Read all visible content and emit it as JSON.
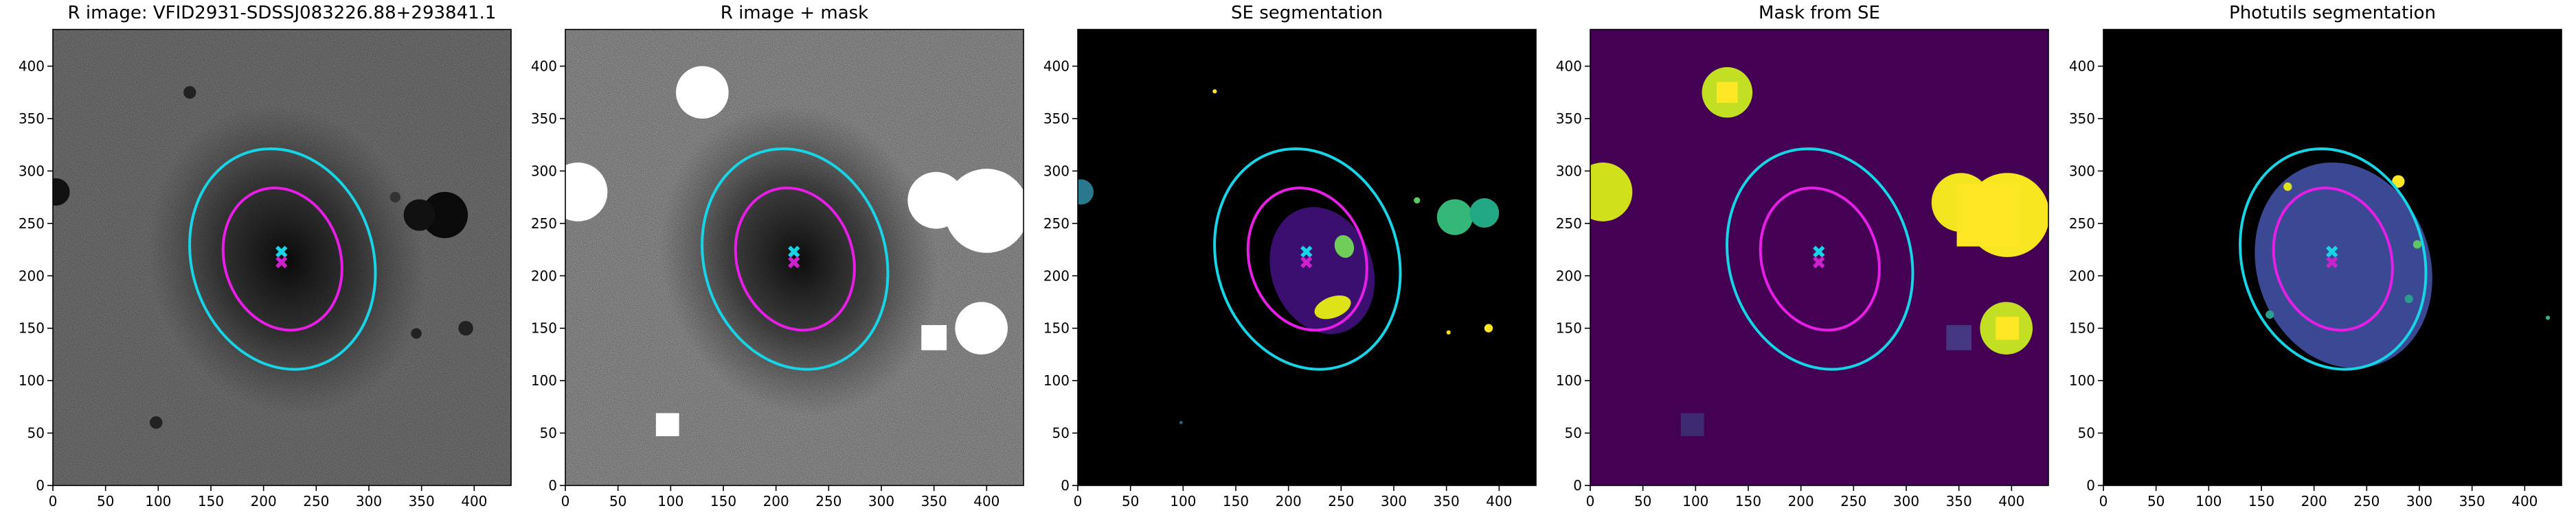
{
  "chart_data": [
    {
      "type": "image",
      "title": "R image: VFID2931-SDSSJ083226.88+293841.1",
      "background": "#7a7a7a",
      "xlim": [
        0,
        435
      ],
      "ylim": [
        0,
        435
      ],
      "xticks": [
        0,
        50,
        100,
        150,
        200,
        250,
        300,
        350,
        400
      ],
      "yticks": [
        0,
        50,
        100,
        150,
        200,
        250,
        300,
        350,
        400
      ]
    },
    {
      "type": "image",
      "title": "R image + mask",
      "background": "#9a9a9a",
      "xlim": [
        0,
        435
      ],
      "ylim": [
        0,
        435
      ],
      "xticks": [
        0,
        50,
        100,
        150,
        200,
        250,
        300,
        350,
        400
      ],
      "yticks": [
        0,
        50,
        100,
        150,
        200,
        250,
        300,
        350,
        400
      ]
    },
    {
      "type": "image",
      "title": "SE segmentation",
      "background": "#000000",
      "xlim": [
        0,
        435
      ],
      "ylim": [
        0,
        435
      ],
      "xticks": [
        0,
        50,
        100,
        150,
        200,
        250,
        300,
        350,
        400
      ],
      "yticks": [
        0,
        50,
        100,
        150,
        200,
        250,
        300,
        350,
        400
      ]
    },
    {
      "type": "image",
      "title": "Mask from SE",
      "background": "#440154",
      "xlim": [
        0,
        435
      ],
      "ylim": [
        0,
        435
      ],
      "xticks": [
        0,
        50,
        100,
        150,
        200,
        250,
        300,
        350,
        400
      ],
      "yticks": [
        0,
        50,
        100,
        150,
        200,
        250,
        300,
        350,
        400
      ]
    },
    {
      "type": "image",
      "title": "Photutils segmentation",
      "background": "#000000",
      "xlim": [
        0,
        435
      ],
      "ylim": [
        0,
        435
      ],
      "xticks": [
        0,
        50,
        100,
        150,
        200,
        250,
        300,
        350,
        400
      ],
      "yticks": [
        0,
        50,
        100,
        150,
        200,
        250,
        300,
        350,
        400
      ]
    }
  ]
}
